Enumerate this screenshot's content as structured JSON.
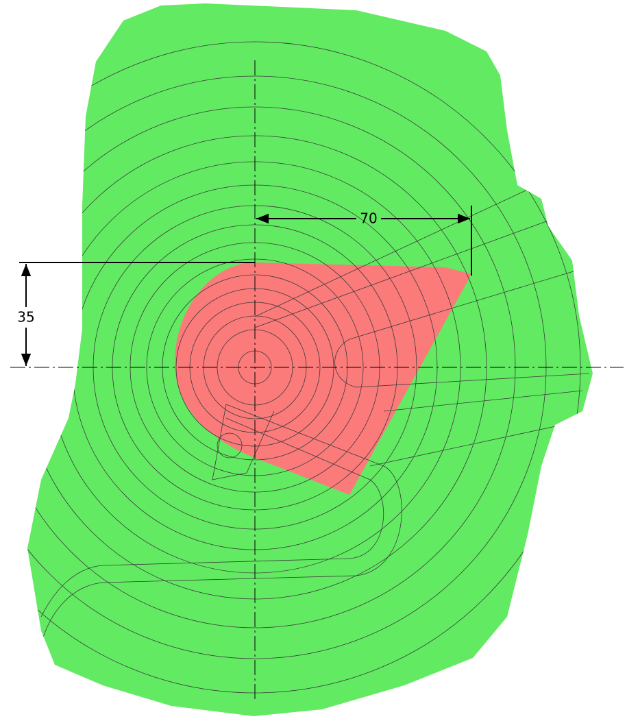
{
  "dimensions": {
    "horizontal": "70",
    "vertical": "35"
  }
}
